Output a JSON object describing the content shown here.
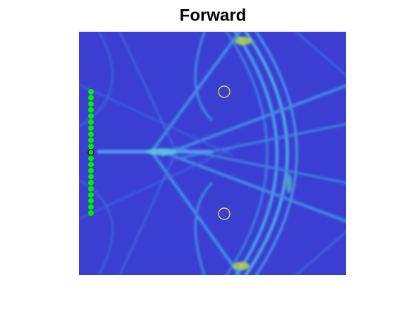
{
  "title": "Forward"
}
